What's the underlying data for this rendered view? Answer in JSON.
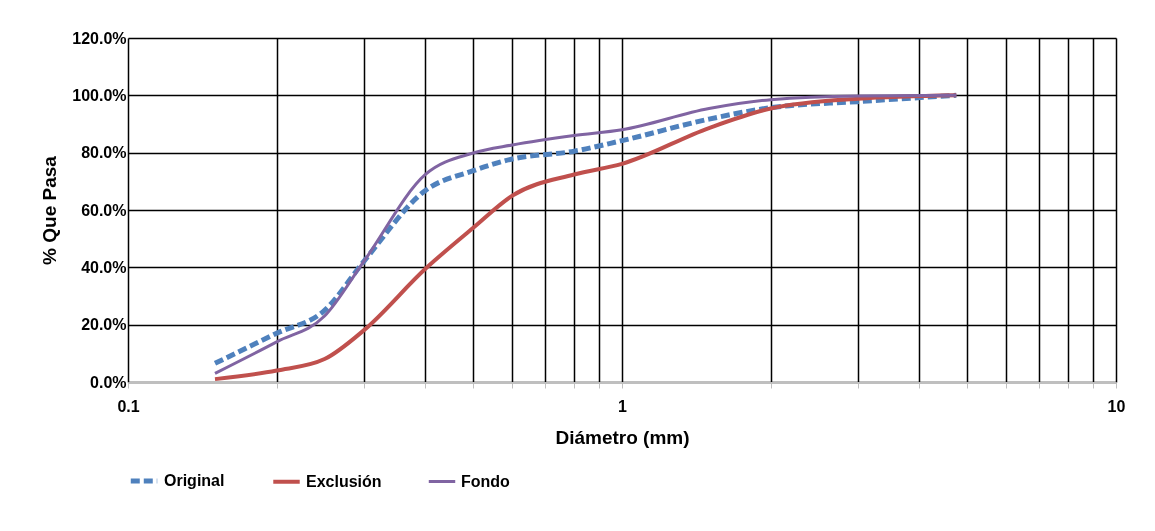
{
  "chart_data": {
    "type": "line",
    "xlabel": "Diámetro (mm)",
    "ylabel": "% Que Pasa",
    "log": "x",
    "grid": true,
    "legend": "bottom",
    "marker": "none",
    "xlim": [
      0.1,
      10
    ],
    "ylim": [
      0,
      120
    ],
    "xticks": [
      0.1,
      {
        "value": 0.2,
        "label": null
      },
      {
        "value": 0.3,
        "label": null
      },
      {
        "value": 0.4,
        "label": null
      },
      {
        "value": 0.5,
        "label": null
      },
      {
        "value": 0.6,
        "label": null
      },
      {
        "value": 0.7,
        "label": null
      },
      {
        "value": 0.8,
        "label": null
      },
      {
        "value": 0.9,
        "label": null
      },
      1,
      {
        "value": 2,
        "label": null
      },
      {
        "value": 3,
        "label": null
      },
      {
        "value": 4,
        "label": null
      },
      {
        "value": 5,
        "label": null
      },
      {
        "value": 6,
        "label": null
      },
      {
        "value": 7,
        "label": null
      },
      {
        "value": 8,
        "label": null
      },
      {
        "value": 9,
        "label": null
      },
      10
    ],
    "yticks": [
      {
        "value": 0,
        "label": "0.0%"
      },
      {
        "value": 20,
        "label": "20.0%"
      },
      {
        "value": 40,
        "label": "40.0%"
      },
      {
        "value": 60,
        "label": "60.0%"
      },
      {
        "value": 80,
        "label": "80.0%"
      },
      {
        "value": 100,
        "label": "100.0%"
      },
      {
        "value": 120,
        "label": "120.0%"
      }
    ],
    "x": [
      0.15,
      0.2,
      0.25,
      0.3,
      0.4,
      0.5,
      0.6,
      0.8,
      1,
      1.5,
      2,
      3,
      4.75
    ],
    "series": [
      {
        "name": "Original",
        "color": "#4f81bd",
        "line_style": "dashed",
        "values": [
          6.5,
          17,
          25,
          42,
          66.8,
          73.7,
          77.8,
          80.5,
          84.2,
          91.7,
          95.7,
          97.8,
          100
        ]
      },
      {
        "name": "Exclusión",
        "color": "#c0504d",
        "line_style": "solid",
        "values": [
          1,
          4,
          8,
          18,
          39.5,
          53.8,
          65,
          72.4,
          76.1,
          88.6,
          95.4,
          98.8,
          100
        ]
      },
      {
        "name": "Fondo",
        "color": "#8064a2",
        "line_style": "solid",
        "values": [
          3,
          14,
          23,
          42,
          72.4,
          79.9,
          82.7,
          86,
          88,
          95.4,
          98.5,
          99.8,
          100
        ]
      }
    ]
  }
}
